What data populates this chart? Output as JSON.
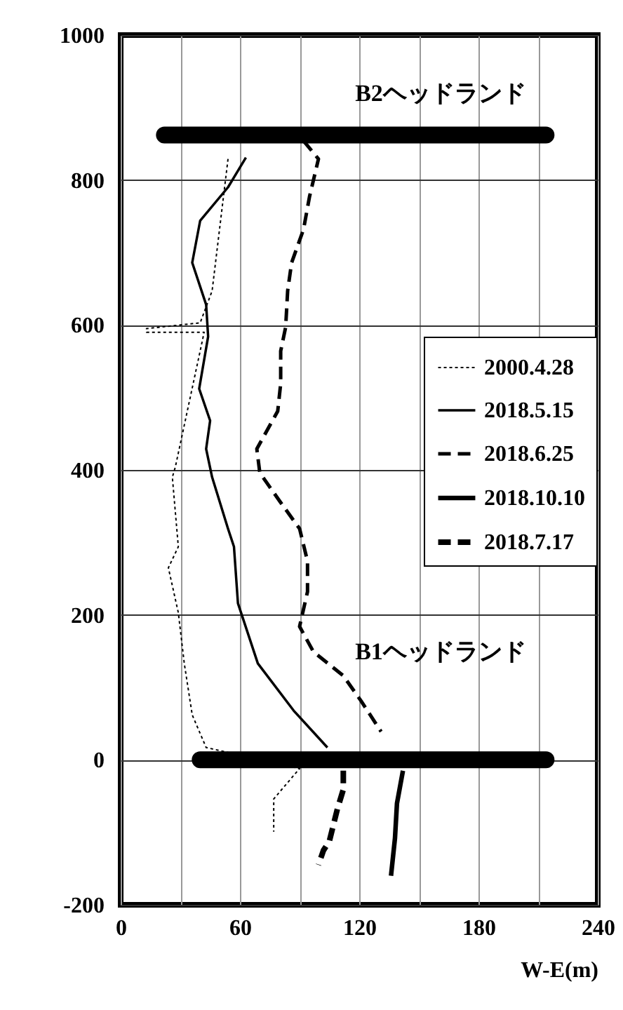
{
  "chart_data": {
    "type": "line",
    "xlabel": "W-E(m)",
    "xlim": [
      0,
      240
    ],
    "ylim": [
      -200,
      1000
    ],
    "xticks": [
      0,
      {
        "value": 30,
        "label": null
      },
      60,
      {
        "value": 90,
        "label": null
      },
      120,
      {
        "value": 150,
        "label": null
      },
      180,
      {
        "value": 210,
        "label": null
      },
      240
    ],
    "yticks": [
      -200,
      0,
      200,
      400,
      600,
      800,
      1000
    ],
    "grid": true,
    "legend": "right",
    "annotations": [
      "B2ヘッドランド",
      "B1ヘッドランド"
    ],
    "series": [
      {
        "name": "2000.4.28",
        "color": "#000000",
        "line_style": "dotted",
        "x": [
          54,
          46,
          40,
          13,
          13,
          42,
          27.5,
          26,
          29,
          24,
          29,
          32,
          36,
          43,
          90,
          77,
          77
        ],
        "values": [
          829,
          647,
          603,
          595,
          590,
          590,
          404,
          390,
          294,
          265,
          203,
          133,
          62,
          17,
          -12,
          -54,
          -99
        ]
      },
      {
        "name": "2018.5.15",
        "color": "#000000",
        "line_style": "solid",
        "x": [
          63,
          54,
          40,
          36,
          43,
          44,
          39.5,
          45,
          43,
          46,
          54,
          57,
          59,
          69,
          87,
          104
        ],
        "values": [
          831,
          790,
          744,
          686,
          628,
          584,
          512,
          468,
          429,
          390,
          319,
          294,
          216,
          133,
          68,
          17
        ]
      },
      {
        "name": "2018.6.25",
        "color": "#000000",
        "line_style": "dashed",
        "x": [
          92,
          99.5,
          95,
          92,
          86,
          84,
          83,
          80.5,
          80.5,
          79,
          68.5,
          70,
          80.5,
          90,
          94,
          94,
          90,
          97,
          112,
          121,
          131
        ],
        "values": [
          854,
          829,
          777,
          732,
          686,
          647,
          597,
          564,
          519,
          481,
          429,
          396,
          355,
          319,
          274,
          232,
          184,
          149,
          116,
          81,
          39
        ]
      },
      {
        "name": "2018.10.10",
        "color": "#000000",
        "line_style": "solid",
        "x": [
          142,
          139,
          138,
          136
        ],
        "values": [
          -15,
          -60,
          -108,
          -160
        ]
      },
      {
        "name": "2018.7.17",
        "color": "#000000",
        "line_style": "dashed",
        "x": [
          112,
          112,
          109,
          105,
          102,
          99.5
        ],
        "values": [
          -15,
          -41,
          -68,
          -112,
          -125,
          -145
        ]
      },
      {
        "color": "#000000",
        "line_style": "solid",
        "x": [
          22,
          214
        ],
        "values": [
          862,
          862
        ]
      },
      {
        "color": "#000000",
        "line_style": "solid",
        "x": [
          40,
          214
        ],
        "values": [
          0,
          0
        ]
      }
    ]
  }
}
